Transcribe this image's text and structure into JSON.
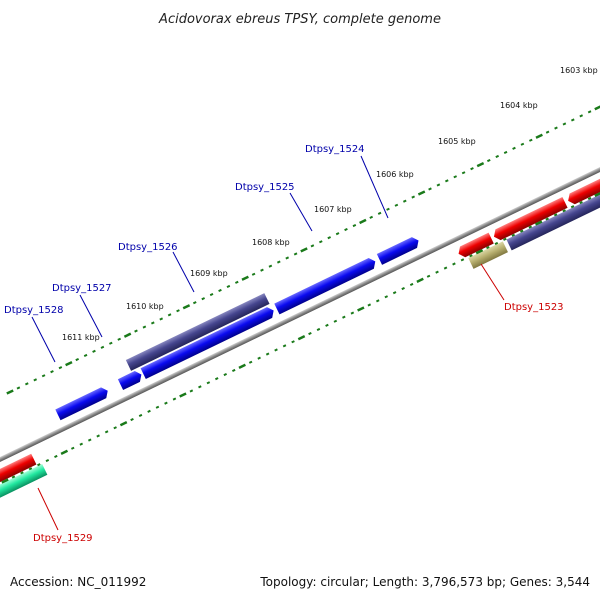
{
  "title": "Acidovorax ebreus TPSY, complete genome",
  "footer": {
    "accession": "Accession: NC_011992",
    "summary": "Topology: circular; Length: 3,796,573 bp; Genes: 3,544"
  },
  "scale_labels": [
    "1603 kbp",
    "1604 kbp",
    "1605 kbp",
    "1606 kbp",
    "1607 kbp",
    "1608 kbp",
    "1609 kbp",
    "1610 kbp",
    "1611 kbp"
  ],
  "genes": [
    {
      "id": "Dtpsy_1523",
      "color": "#cc0000"
    },
    {
      "id": "Dtpsy_1524",
      "color": "#0000aa"
    },
    {
      "id": "Dtpsy_1525",
      "color": "#0000aa"
    },
    {
      "id": "Dtpsy_1526",
      "color": "#0000aa"
    },
    {
      "id": "Dtpsy_1527",
      "color": "#0000aa"
    },
    {
      "id": "Dtpsy_1528",
      "color": "#0000aa"
    },
    {
      "id": "Dtpsy_1529",
      "color": "#cc0000"
    }
  ],
  "colors": {
    "backbone": "#8a8a8a",
    "tick": "#1a7a1a",
    "gene_blue": "#0a0af0",
    "gene_navy": "#45458e",
    "gene_red": "#ee0000",
    "gene_olive": "#b8b070",
    "gene_teal": "#22e8a0"
  }
}
